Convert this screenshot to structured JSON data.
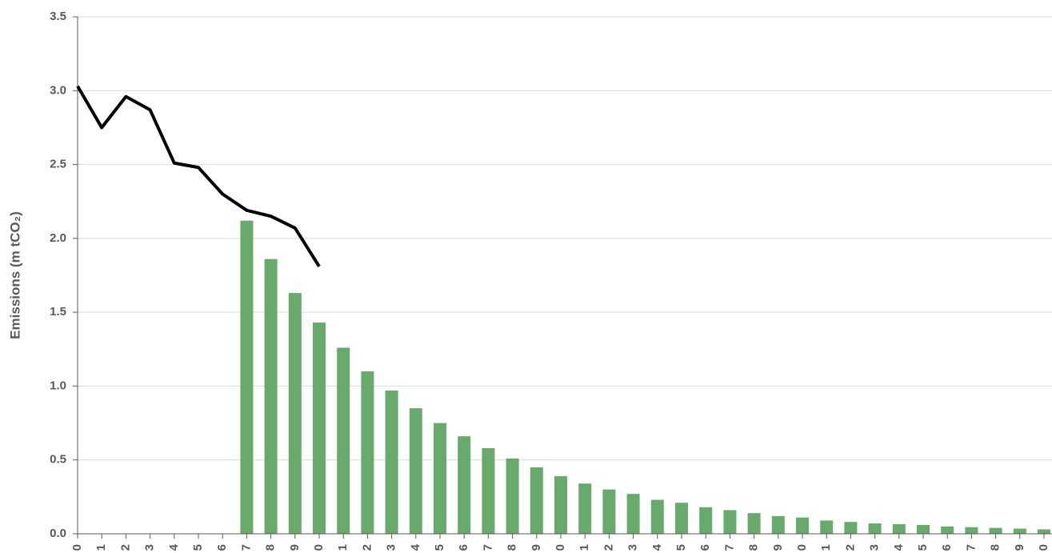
{
  "chart_data": {
    "type": "bar-line",
    "y_label": "Emissions (m tCO₂)",
    "categories": [
      "0",
      "1",
      "2",
      "3",
      "4",
      "5",
      "6",
      "7",
      "8",
      "9",
      "0",
      "1",
      "2",
      "3",
      "4",
      "5",
      "6",
      "7",
      "8",
      "9",
      "0",
      "1",
      "2",
      "3",
      "4",
      "5",
      "6",
      "7",
      "8",
      "9",
      "0",
      "1",
      "2",
      "3",
      "4",
      "5",
      "6",
      "7",
      "8",
      "9",
      "0"
    ],
    "series": [
      {
        "type": "bar",
        "color": "#67aa6b",
        "values": [
          null,
          null,
          null,
          null,
          null,
          null,
          null,
          2.12,
          1.86,
          1.63,
          1.43,
          1.26,
          1.1,
          0.97,
          0.85,
          0.75,
          0.66,
          0.58,
          0.51,
          0.45,
          0.39,
          0.34,
          0.3,
          0.27,
          0.23,
          0.21,
          0.18,
          0.16,
          0.14,
          0.12,
          0.11,
          0.09,
          0.08,
          0.07,
          0.065,
          0.06,
          0.05,
          0.045,
          0.04,
          0.035,
          0.03
        ]
      },
      {
        "type": "line",
        "color": "#000000",
        "values": [
          3.03,
          2.75,
          2.96,
          2.87,
          2.51,
          2.48,
          2.3,
          2.19,
          2.15,
          2.07,
          1.81,
          null,
          null,
          null,
          null,
          null,
          null,
          null,
          null,
          null,
          null,
          null,
          null,
          null,
          null,
          null,
          null,
          null,
          null,
          null,
          null,
          null,
          null,
          null,
          null,
          null,
          null,
          null,
          null,
          null,
          null
        ]
      }
    ],
    "ylim": [
      0,
      3.5
    ],
    "yticks": [
      {
        "value": 0,
        "label": "0.0"
      },
      0.5,
      {
        "value": 1,
        "label": "1.0"
      },
      1.5,
      {
        "value": 2,
        "label": "2.0"
      },
      2.5,
      {
        "value": 3,
        "label": "3.0"
      },
      3.5
    ],
    "grid": true
  }
}
